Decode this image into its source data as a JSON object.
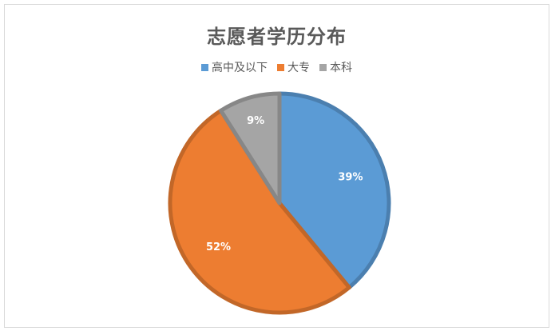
{
  "chart_data": {
    "type": "pie",
    "title": "志愿者学历分布",
    "categories": [
      "高中及以下",
      "大专",
      "本科"
    ],
    "values": [
      39,
      52,
      9
    ],
    "labels": [
      "39%",
      "52%",
      "9%"
    ],
    "colors": [
      "#5b9bd5",
      "#ed7d31",
      "#a5a5a5"
    ],
    "legend_position": "top"
  }
}
